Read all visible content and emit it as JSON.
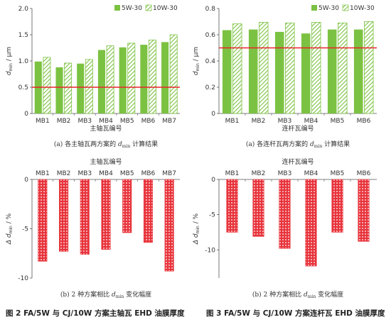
{
  "colors": {
    "s1_fill": "#7cc242",
    "s2_stripe": "#7cc242",
    "s2_bg": "#ffffff",
    "ref_line": "#e8242a",
    "neg_fill": "#e8343c",
    "axis": "#555555"
  },
  "figure_captions": {
    "left": "图 2   FA/5W 与 CJ/10W 方案主轴瓦 EHD 油膜厚度",
    "right": "图 3   FA/5W 与 CJ/10W 方案连杆瓦 EHD 油膜厚度"
  },
  "chart_data": [
    {
      "type": "bar",
      "id": "a-main",
      "caption_prefix": "(a) 各主轴瓦两方案的",
      "caption_sub": "min",
      "caption_suffix": " 计算结果",
      "xlabel": "主轴瓦编号",
      "ylabel_main": "d",
      "ylabel_sub": "min",
      "ylabel_unit": " / μm",
      "categories": [
        "MB1",
        "MB2",
        "MB3",
        "MB4",
        "MB5",
        "MB6",
        "MB7"
      ],
      "series": [
        {
          "name": "5W-30",
          "values": [
            0.99,
            0.88,
            0.95,
            1.21,
            1.26,
            1.31,
            1.36
          ]
        },
        {
          "name": "10W-30",
          "values": [
            1.07,
            0.96,
            1.03,
            1.29,
            1.34,
            1.4,
            1.5
          ]
        }
      ],
      "ylim": [
        0,
        2.0
      ],
      "yticks": [
        "0",
        "0.5",
        "1.0",
        "1.5",
        "2.0"
      ],
      "ytick_values": [
        0,
        0.5,
        1.0,
        1.5,
        2.0
      ],
      "ref_line": 0.5,
      "legend": "top-right"
    },
    {
      "type": "bar",
      "id": "a-rod",
      "caption_prefix": "(a) 各连杆瓦两方案的",
      "caption_sub": "min",
      "caption_suffix": " 计算结果",
      "xlabel": "连杆瓦编号",
      "ylabel_main": "d",
      "ylabel_sub": "min",
      "ylabel_unit": " / μm",
      "categories": [
        "MB1",
        "MB2",
        "MB3",
        "MB4",
        "MB5",
        "MB6"
      ],
      "series": [
        {
          "name": "5W-30",
          "values": [
            0.635,
            0.64,
            0.622,
            0.61,
            0.64,
            0.64
          ]
        },
        {
          "name": "10W-30",
          "values": [
            0.683,
            0.695,
            0.69,
            0.695,
            0.69,
            0.7
          ]
        }
      ],
      "ylim": [
        0,
        0.8
      ],
      "yticks": [
        "0",
        "0.2",
        "0.4",
        "0.6",
        "0.8"
      ],
      "ytick_values": [
        0,
        0.2,
        0.4,
        0.6,
        0.8
      ],
      "ref_line": 0.5,
      "legend": "top-right"
    },
    {
      "type": "bar",
      "id": "b-main",
      "caption_prefix": "(b) 2 种方案相比",
      "caption_sub": "min",
      "caption_suffix": " 变化幅度",
      "xlabel": "主轴瓦编号",
      "ylabel_main": "Δ d",
      "ylabel_sub": "min",
      "ylabel_unit": " / %",
      "categories": [
        "MB1",
        "MB2",
        "MB3",
        "MB4",
        "MB5",
        "MB6",
        "MB7"
      ],
      "values": [
        -8.3,
        -7.3,
        -7.6,
        -7.1,
        -5.4,
        -6.4,
        -9.3
      ],
      "ylim": [
        -10,
        0
      ],
      "yticks": [
        "0",
        "-5",
        "-10"
      ],
      "ytick_values": [
        0,
        -5,
        -10
      ]
    },
    {
      "type": "bar",
      "id": "b-rod",
      "caption_prefix": "(b) 2 种方案相比",
      "caption_sub": "min",
      "caption_suffix": " 变化幅度",
      "xlabel": "连杆瓦编号",
      "ylabel_main": "Δ d",
      "ylabel_sub": "min",
      "ylabel_unit": " / %",
      "categories": [
        "MB1",
        "MB2",
        "MB3",
        "MB4",
        "MB5",
        "MB6"
      ],
      "values": [
        -7.5,
        -8.1,
        -9.8,
        -12.3,
        -7.5,
        -8.8
      ],
      "ylim": [
        -14,
        0
      ],
      "yticks": [
        "0",
        "-5",
        "-10"
      ],
      "ytick_values": [
        0,
        -5,
        -10
      ]
    }
  ]
}
